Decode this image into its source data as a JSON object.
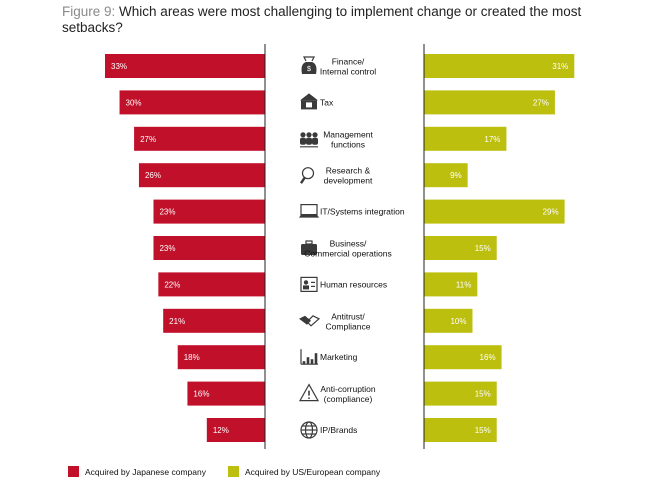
{
  "title": {
    "figure_label": "Figure 9:",
    "text": "Which areas were most challenging to implement change or created the most setbacks?"
  },
  "colors": {
    "japanese": "#c0102a",
    "western": "#bcbf0e",
    "divider": "#222222"
  },
  "chart_data": {
    "type": "bar",
    "orientation": "horizontal-butterfly",
    "unit": "%",
    "categories": [
      {
        "label": [
          "Finance/",
          "Internal control"
        ],
        "icon": "money-bag-icon"
      },
      {
        "label": [
          "Tax"
        ],
        "icon": "tax-icon"
      },
      {
        "label": [
          "Management",
          "functions"
        ],
        "icon": "people-icon"
      },
      {
        "label": [
          "Research &",
          "development"
        ],
        "icon": "magnifier-icon"
      },
      {
        "label": [
          "IT/Systems integration"
        ],
        "icon": "laptop-icon"
      },
      {
        "label": [
          "Business/",
          "Commercial operations"
        ],
        "icon": "briefcase-icon"
      },
      {
        "label": [
          "Human resources"
        ],
        "icon": "id-card-icon"
      },
      {
        "label": [
          "Antitrust/",
          "Compliance"
        ],
        "icon": "handshake-icon"
      },
      {
        "label": [
          "Marketing"
        ],
        "icon": "bar-chart-icon"
      },
      {
        "label": [
          "Anti-corruption",
          "(compliance)"
        ],
        "icon": "warning-icon"
      },
      {
        "label": [
          "IP/Brands"
        ],
        "icon": "globe-icon"
      }
    ],
    "series": [
      {
        "name": "Acquired by Japanese company",
        "side": "left",
        "values": [
          33,
          30,
          27,
          26,
          23,
          23,
          22,
          21,
          18,
          16,
          12
        ]
      },
      {
        "name": "Acquired by US/European company",
        "side": "right",
        "values": [
          31,
          27,
          17,
          9,
          29,
          15,
          11,
          10,
          16,
          15,
          15
        ]
      }
    ],
    "xlim": [
      0,
      33
    ]
  },
  "legend": [
    {
      "label": "Acquired by Japanese company"
    },
    {
      "label": "Acquired by US/European company"
    }
  ]
}
